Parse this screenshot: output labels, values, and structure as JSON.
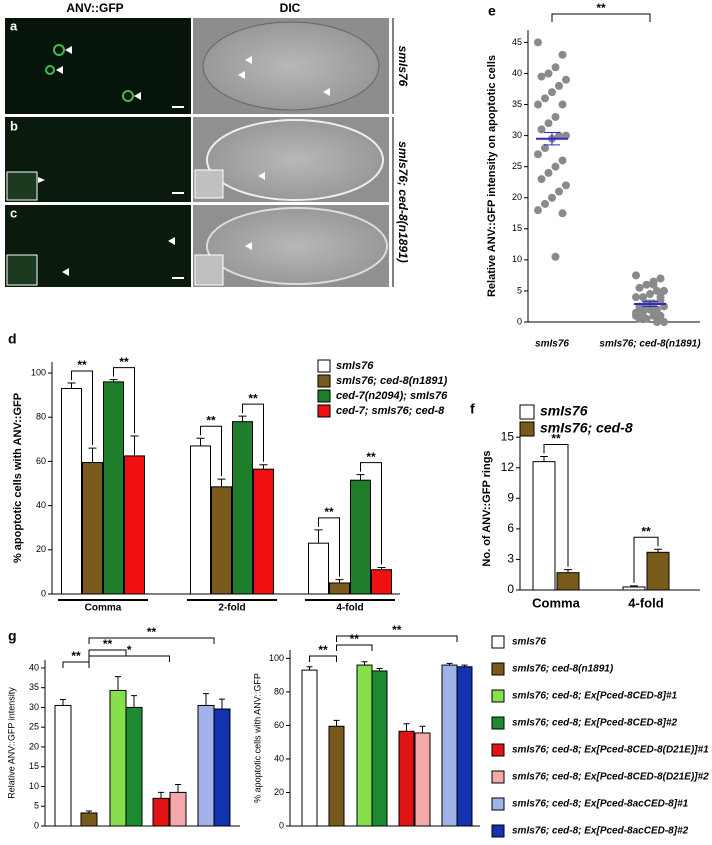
{
  "panel_letters": [
    "a",
    "b",
    "c",
    "d",
    "e",
    "f",
    "g"
  ],
  "micrographs": {
    "columns": [
      "ANV::GFP",
      "DIC"
    ],
    "genotypes": [
      "smIs76",
      "smIs76; ced-8(n1891)"
    ]
  },
  "legend_g": [
    {
      "name": "smIs76",
      "color": "#ffffff"
    },
    {
      "name": "smIs76; ced-8(n1891)",
      "color": "#7a5a1c"
    },
    {
      "name": "smIs76; ced-8; Ex[Pced-8CED-8]#1",
      "color": "#86e04e"
    },
    {
      "name": "smIs76; ced-8; Ex[Pced-8CED-8]#2",
      "color": "#1f8a34"
    },
    {
      "name": "smIs76; ced-8; Ex[Pced-8CED-8(D21E)]#1",
      "color": "#e01414"
    },
    {
      "name": "smIs76; ced-8; Ex[Pced-8CED-8(D21E)]#2",
      "color": "#f4a9a9"
    },
    {
      "name": "smIs76; ced-8; Ex[Pced-8acCED-8]#1",
      "color": "#a2b3ea"
    },
    {
      "name": "smIs76; ced-8; Ex[Pced-8acCED-8]#2",
      "color": "#1232b0"
    }
  ],
  "chart_data": [
    {
      "type": "scatter",
      "y_label": "Relative ANV::GFP intensity on apoptotic cells",
      "categories": [
        "smIs76",
        "smIs76; ced-8(n1891)"
      ],
      "color": "#8a8a8a",
      "mean_color": "#2a2ad0",
      "groups": [
        {
          "values": [
            45,
            43,
            41,
            40,
            39.5,
            39,
            38,
            37,
            36,
            35,
            35,
            33,
            32,
            31,
            30,
            30,
            29.5,
            28,
            27,
            26,
            25,
            24,
            23,
            22,
            21,
            20,
            19,
            18,
            17.5,
            10.5
          ],
          "mean": 29.5,
          "sem": 1
        },
        {
          "values": [
            7.5,
            7,
            6.5,
            6,
            5.5,
            5,
            5,
            4.5,
            4,
            4,
            3.5,
            3,
            3,
            2.5,
            2.5,
            2,
            2,
            1.5,
            1.5,
            1,
            1,
            0.5,
            0.5,
            0,
            0,
            3,
            2,
            1,
            4,
            6
          ],
          "mean": 2.9,
          "sem": 0.4
        }
      ],
      "significance": [
        "**"
      ],
      "ylim": [
        0,
        47
      ],
      "yticks": [
        0,
        5,
        10,
        15,
        20,
        25,
        30,
        35,
        40,
        45
      ]
    },
    {
      "type": "bar",
      "y_label": "% apoptotic cells with ANV::GFP",
      "categories": [
        "Comma",
        "2-fold",
        "4-fold"
      ],
      "series": [
        {
          "name": "smIs76",
          "color": "#ffffff",
          "values": [
            93,
            67,
            23
          ],
          "errors": [
            2.5,
            3.5,
            6
          ]
        },
        {
          "name": "smIs76; ced-8(n1891)",
          "color": "#7a5a1c",
          "values": [
            59.5,
            48.5,
            5
          ],
          "errors": [
            6.5,
            3.5,
            1.5
          ]
        },
        {
          "name": "ced-7(n2094); smIs76",
          "color": "#1f7e2c",
          "values": [
            96,
            78,
            51.5
          ],
          "errors": [
            1,
            2.5,
            2.5
          ]
        },
        {
          "name": "ced-7; smIs76; ced-8",
          "color": "#f01010",
          "values": [
            62.5,
            56.5,
            11
          ],
          "errors": [
            9,
            2,
            1
          ]
        }
      ],
      "significance": [
        "**",
        "**",
        "**",
        "**",
        "**",
        "**"
      ],
      "ylim": [
        0,
        105
      ],
      "yticks": [
        0,
        20,
        40,
        60,
        80,
        100
      ]
    },
    {
      "type": "bar",
      "y_label": "No. of ANV::GFP rings",
      "categories": [
        "Comma",
        "4-fold"
      ],
      "series": [
        {
          "name": "smIs76",
          "color": "#ffffff",
          "values": [
            12.6,
            0.3
          ],
          "errors": [
            0.5,
            0.1
          ]
        },
        {
          "name": "smIs76; ced-8",
          "color": "#7a5a1c",
          "values": [
            1.7,
            3.7
          ],
          "errors": [
            0.3,
            0.3
          ]
        }
      ],
      "significance": [
        "**",
        "**"
      ],
      "ylim": [
        0,
        16
      ],
      "yticks": [
        0,
        3,
        6,
        9,
        12,
        15
      ]
    },
    {
      "type": "bar",
      "y_label": "Relative ANV::GFP intensity",
      "values": [
        30.5,
        3.3,
        34.3,
        30,
        7,
        8.5,
        30.5,
        29.6
      ],
      "errors": [
        1.5,
        0.5,
        3.5,
        3,
        1.5,
        2,
        3,
        2.5
      ],
      "significance": [
        "**",
        "**",
        "*",
        "**"
      ],
      "ylim": [
        0,
        42
      ],
      "yticks": [
        0,
        5,
        10,
        15,
        20,
        25,
        30,
        35,
        40
      ]
    },
    {
      "type": "bar",
      "y_label": "% apoptotic cells with ANV::GFP",
      "values": [
        93,
        59.5,
        96,
        92.5,
        56.5,
        55.5,
        96,
        95
      ],
      "errors": [
        2,
        3.5,
        2,
        1.5,
        4.5,
        4,
        1,
        1
      ],
      "significance": [
        "**",
        "**",
        "**"
      ],
      "ylim": [
        0,
        105
      ],
      "yticks": [
        0,
        20,
        40,
        60,
        80,
        100
      ]
    }
  ]
}
